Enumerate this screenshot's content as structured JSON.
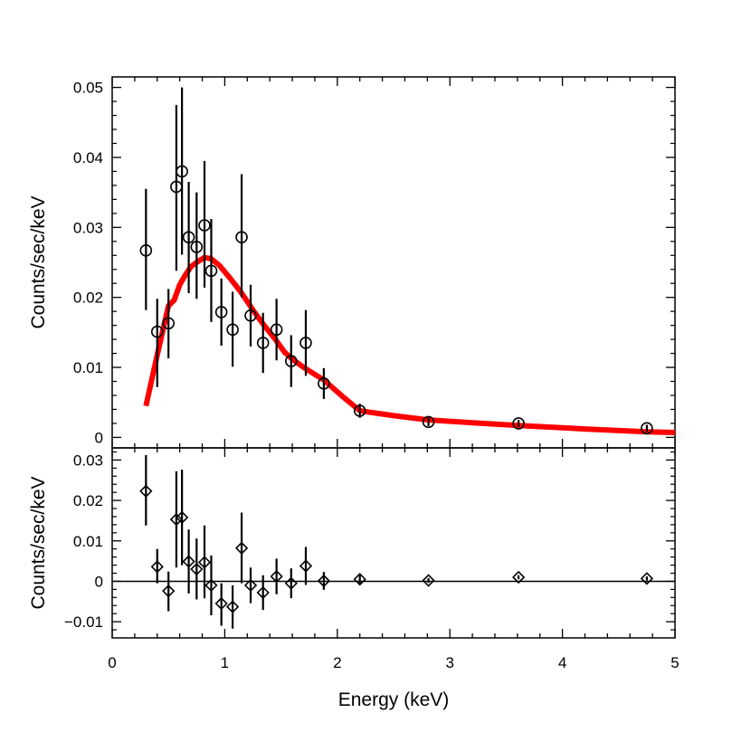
{
  "chart_data": [
    {
      "type": "scatter",
      "panel": "top",
      "ylabel": "Counts/sec/keV",
      "xlabel": "",
      "xlim": [
        0,
        5
      ],
      "ylim": [
        -0.0015,
        0.0515
      ],
      "y_ticks": [
        "0",
        "0.01",
        "0.02",
        "0.03",
        "0.04",
        "0.05"
      ],
      "y_tick_values": [
        0,
        0.01,
        0.02,
        0.03,
        0.04,
        0.05
      ],
      "series": [
        {
          "name": "data",
          "marker": "circle",
          "color": "#000000",
          "points": [
            {
              "x": 0.3,
              "y": 0.0267,
              "yerr_lo": 0.0182,
              "yerr_hi": 0.0355
            },
            {
              "x": 0.4,
              "y": 0.0151,
              "yerr_lo": 0.0072,
              "yerr_hi": 0.0198
            },
            {
              "x": 0.5,
              "y": 0.0163,
              "yerr_lo": 0.0113,
              "yerr_hi": 0.0212
            },
            {
              "x": 0.57,
              "y": 0.0358,
              "yerr_lo": 0.0238,
              "yerr_hi": 0.0475
            },
            {
              "x": 0.62,
              "y": 0.038,
              "yerr_lo": 0.0261,
              "yerr_hi": 0.05
            },
            {
              "x": 0.68,
              "y": 0.0286,
              "yerr_lo": 0.0206,
              "yerr_hi": 0.0365
            },
            {
              "x": 0.75,
              "y": 0.0272,
              "yerr_lo": 0.0198,
              "yerr_hi": 0.035
            },
            {
              "x": 0.82,
              "y": 0.0303,
              "yerr_lo": 0.0214,
              "yerr_hi": 0.0395
            },
            {
              "x": 0.88,
              "y": 0.0238,
              "yerr_lo": 0.0165,
              "yerr_hi": 0.0312
            },
            {
              "x": 0.97,
              "y": 0.0179,
              "yerr_lo": 0.0131,
              "yerr_hi": 0.0227
            },
            {
              "x": 1.07,
              "y": 0.0154,
              "yerr_lo": 0.0101,
              "yerr_hi": 0.0208
            },
            {
              "x": 1.15,
              "y": 0.0286,
              "yerr_lo": 0.02,
              "yerr_hi": 0.0376
            },
            {
              "x": 1.23,
              "y": 0.0174,
              "yerr_lo": 0.013,
              "yerr_hi": 0.0218
            },
            {
              "x": 1.34,
              "y": 0.0135,
              "yerr_lo": 0.0092,
              "yerr_hi": 0.0178
            },
            {
              "x": 1.46,
              "y": 0.0154,
              "yerr_lo": 0.011,
              "yerr_hi": 0.0198
            },
            {
              "x": 1.59,
              "y": 0.0109,
              "yerr_lo": 0.0072,
              "yerr_hi": 0.0146
            },
            {
              "x": 1.72,
              "y": 0.0135,
              "yerr_lo": 0.0088,
              "yerr_hi": 0.0182
            },
            {
              "x": 1.88,
              "y": 0.0077,
              "yerr_lo": 0.0055,
              "yerr_hi": 0.0099
            },
            {
              "x": 2.2,
              "y": 0.0038,
              "yerr_lo": 0.0028,
              "yerr_hi": 0.0048
            },
            {
              "x": 2.81,
              "y": 0.0022,
              "yerr_lo": 0.0016,
              "yerr_hi": 0.0028
            },
            {
              "x": 3.61,
              "y": 0.002,
              "yerr_lo": 0.0015,
              "yerr_hi": 0.0025
            },
            {
              "x": 4.75,
              "y": 0.0013,
              "yerr_lo": 0.0008,
              "yerr_hi": 0.0018
            }
          ]
        },
        {
          "name": "model",
          "line": true,
          "color": "#ff0000",
          "points": [
            {
              "x": 0.3,
              "y": 0.0045
            },
            {
              "x": 0.4,
              "y": 0.0118
            },
            {
              "x": 0.5,
              "y": 0.0188
            },
            {
              "x": 0.55,
              "y": 0.0196
            },
            {
              "x": 0.6,
              "y": 0.0218
            },
            {
              "x": 0.65,
              "y": 0.0232
            },
            {
              "x": 0.7,
              "y": 0.0244
            },
            {
              "x": 0.75,
              "y": 0.025
            },
            {
              "x": 0.82,
              "y": 0.0257
            },
            {
              "x": 0.88,
              "y": 0.0255
            },
            {
              "x": 0.95,
              "y": 0.0246
            },
            {
              "x": 1.05,
              "y": 0.0227
            },
            {
              "x": 1.15,
              "y": 0.0206
            },
            {
              "x": 1.25,
              "y": 0.0182
            },
            {
              "x": 1.35,
              "y": 0.016
            },
            {
              "x": 1.45,
              "y": 0.014
            },
            {
              "x": 1.53,
              "y": 0.0122
            },
            {
              "x": 1.6,
              "y": 0.0112
            },
            {
              "x": 1.7,
              "y": 0.01
            },
            {
              "x": 1.88,
              "y": 0.0082
            },
            {
              "x": 2.05,
              "y": 0.0058
            },
            {
              "x": 2.2,
              "y": 0.0038
            },
            {
              "x": 2.5,
              "y": 0.0031
            },
            {
              "x": 2.81,
              "y": 0.0025
            },
            {
              "x": 3.2,
              "y": 0.0021
            },
            {
              "x": 3.61,
              "y": 0.0017
            },
            {
              "x": 4.2,
              "y": 0.0012
            },
            {
              "x": 4.75,
              "y": 0.0008
            },
            {
              "x": 5.0,
              "y": 0.0007
            }
          ]
        }
      ]
    },
    {
      "type": "scatter",
      "panel": "bottom",
      "ylabel": "Counts/sec/keV",
      "xlabel": "Energy (keV)",
      "xlim": [
        0,
        5
      ],
      "ylim": [
        -0.014,
        0.033
      ],
      "x_ticks": [
        "0",
        "1",
        "2",
        "3",
        "4",
        "5"
      ],
      "x_tick_values": [
        0,
        1,
        2,
        3,
        4,
        5
      ],
      "y_ticks": [
        "−0.01",
        "0",
        "0.01",
        "0.02",
        "0.03"
      ],
      "y_tick_values": [
        -0.01,
        0,
        0.01,
        0.02,
        0.03
      ],
      "zero_line": true,
      "series": [
        {
          "name": "residuals",
          "marker": "diamond",
          "color": "#000000",
          "points": [
            {
              "x": 0.3,
              "y": 0.0223,
              "yerr_lo": 0.0138,
              "yerr_hi": 0.0312
            },
            {
              "x": 0.4,
              "y": 0.0036,
              "yerr_lo": -0.0005,
              "yerr_hi": 0.008
            },
            {
              "x": 0.5,
              "y": -0.0024,
              "yerr_lo": -0.0074,
              "yerr_hi": 0.0024
            },
            {
              "x": 0.57,
              "y": 0.0153,
              "yerr_lo": 0.0034,
              "yerr_hi": 0.0272
            },
            {
              "x": 0.62,
              "y": 0.0158,
              "yerr_lo": 0.004,
              "yerr_hi": 0.0276
            },
            {
              "x": 0.68,
              "y": 0.0049,
              "yerr_lo": -0.003,
              "yerr_hi": 0.0128
            },
            {
              "x": 0.75,
              "y": 0.003,
              "yerr_lo": -0.0045,
              "yerr_hi": 0.0106
            },
            {
              "x": 0.82,
              "y": 0.0047,
              "yerr_lo": -0.0042,
              "yerr_hi": 0.0138
            },
            {
              "x": 0.88,
              "y": -0.001,
              "yerr_lo": -0.0084,
              "yerr_hi": 0.0064
            },
            {
              "x": 0.97,
              "y": -0.0055,
              "yerr_lo": -0.011,
              "yerr_hi": -0.0005
            },
            {
              "x": 1.07,
              "y": -0.0063,
              "yerr_lo": -0.0117,
              "yerr_hi": -0.001
            },
            {
              "x": 1.15,
              "y": 0.0082,
              "yerr_lo": -0.0005,
              "yerr_hi": 0.017
            },
            {
              "x": 1.23,
              "y": -0.001,
              "yerr_lo": -0.0054,
              "yerr_hi": 0.0034
            },
            {
              "x": 1.34,
              "y": -0.0028,
              "yerr_lo": -0.0071,
              "yerr_hi": 0.0015
            },
            {
              "x": 1.46,
              "y": 0.0012,
              "yerr_lo": -0.0032,
              "yerr_hi": 0.0056
            },
            {
              "x": 1.59,
              "y": -0.0005,
              "yerr_lo": -0.0042,
              "yerr_hi": 0.0032
            },
            {
              "x": 1.72,
              "y": 0.0038,
              "yerr_lo": -0.0009,
              "yerr_hi": 0.0085
            },
            {
              "x": 1.88,
              "y": 0.0001,
              "yerr_lo": -0.0021,
              "yerr_hi": 0.0023
            },
            {
              "x": 2.2,
              "y": 0.0005,
              "yerr_lo": -0.0005,
              "yerr_hi": 0.0015
            },
            {
              "x": 2.81,
              "y": 0.0002,
              "yerr_lo": -0.0004,
              "yerr_hi": 0.0008
            },
            {
              "x": 3.61,
              "y": 0.001,
              "yerr_lo": 0.0005,
              "yerr_hi": 0.0015
            },
            {
              "x": 4.75,
              "y": 0.0007,
              "yerr_lo": 0.0002,
              "yerr_hi": 0.0012
            }
          ]
        }
      ]
    }
  ]
}
